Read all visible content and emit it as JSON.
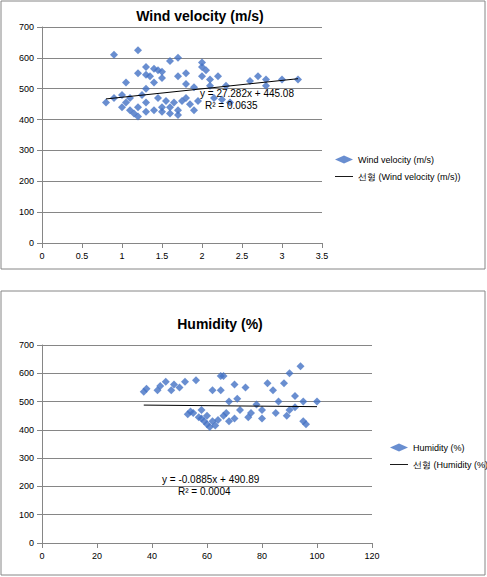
{
  "chart_data": [
    {
      "type": "scatter",
      "title": "Wind velocity (m/s)",
      "xlim": [
        0,
        3.5
      ],
      "xticks": [
        0,
        0.5,
        1,
        1.5,
        2,
        2.5,
        3,
        3.5
      ],
      "ylim": [
        0,
        700
      ],
      "yticks": [
        0,
        100,
        200,
        300,
        400,
        500,
        600,
        700
      ],
      "grid": true,
      "legend": "right",
      "annotations": [
        "y = 27.282x + 445.08",
        "R² = 0.0635"
      ],
      "series": [
        {
          "name": "Wind velocity (m/s)",
          "type": "scatter",
          "color": "#4472c4",
          "marker": "diamond",
          "x": [
            0.8,
            0.9,
            0.9,
            1.0,
            1.0,
            1.05,
            1.05,
            1.1,
            1.1,
            1.15,
            1.2,
            1.2,
            1.2,
            1.2,
            1.25,
            1.3,
            1.3,
            1.3,
            1.3,
            1.3,
            1.35,
            1.4,
            1.4,
            1.4,
            1.45,
            1.45,
            1.5,
            1.5,
            1.5,
            1.5,
            1.55,
            1.6,
            1.6,
            1.6,
            1.65,
            1.7,
            1.7,
            1.7,
            1.7,
            1.75,
            1.8,
            1.8,
            1.8,
            1.85,
            1.9,
            1.9,
            1.95,
            2.0,
            2.0,
            2.0,
            2.05,
            2.1,
            2.1,
            2.15,
            2.2,
            2.25,
            2.3,
            2.35,
            2.6,
            2.7,
            2.8,
            2.8,
            3.0,
            3.2
          ],
          "values": [
            455,
            470,
            610,
            480,
            440,
            520,
            455,
            430,
            470,
            420,
            625,
            550,
            440,
            410,
            480,
            570,
            545,
            500,
            455,
            425,
            540,
            565,
            520,
            430,
            560,
            470,
            555,
            535,
            440,
            425,
            460,
            590,
            440,
            420,
            455,
            600,
            540,
            430,
            415,
            460,
            550,
            515,
            470,
            450,
            430,
            505,
            460,
            585,
            570,
            540,
            560,
            530,
            510,
            470,
            540,
            465,
            510,
            455,
            525,
            540,
            510,
            530,
            530,
            530
          ]
        },
        {
          "name": "선형 (Wind velocity (m/s))",
          "type": "line",
          "color": "#000000",
          "line_style": "solid",
          "x": [
            0.8,
            3.2
          ],
          "values": [
            466.9,
            532.4
          ]
        }
      ]
    },
    {
      "type": "scatter",
      "title": "Humidity (%)",
      "xlim": [
        0,
        120
      ],
      "xticks": [
        0,
        20,
        40,
        60,
        80,
        100,
        120
      ],
      "ylim": [
        0,
        700
      ],
      "yticks": [
        0,
        100,
        200,
        300,
        400,
        500,
        600,
        700
      ],
      "grid": true,
      "legend": "right",
      "annotations": [
        "y = -0.0885x + 490.89",
        "R² = 0.0004"
      ],
      "series": [
        {
          "name": "Humidity (%)",
          "type": "scatter",
          "color": "#4472c4",
          "marker": "diamond",
          "x": [
            37,
            38,
            42,
            43,
            45,
            47,
            48,
            50,
            52,
            53,
            54,
            55,
            56,
            57,
            58,
            58,
            59,
            60,
            60,
            61,
            62,
            62,
            63,
            64,
            65,
            65,
            66,
            66,
            67,
            68,
            68,
            70,
            70,
            71,
            72,
            74,
            75,
            76,
            78,
            80,
            80,
            82,
            84,
            85,
            86,
            88,
            89,
            90,
            90,
            92,
            92,
            94,
            95,
            95,
            96,
            100
          ],
          "values": [
            535,
            545,
            540,
            555,
            570,
            540,
            560,
            550,
            570,
            455,
            465,
            460,
            575,
            445,
            440,
            470,
            430,
            420,
            450,
            410,
            430,
            540,
            415,
            435,
            590,
            540,
            450,
            590,
            460,
            430,
            500,
            560,
            440,
            510,
            470,
            550,
            445,
            460,
            490,
            440,
            470,
            565,
            540,
            460,
            500,
            565,
            450,
            600,
            470,
            520,
            480,
            625,
            500,
            430,
            420,
            500
          ]
        },
        {
          "name": "선형 (Humidity (%))",
          "type": "line",
          "color": "#000000",
          "line_style": "solid",
          "x": [
            37,
            100
          ],
          "values": [
            487.6,
            482.0
          ]
        }
      ]
    }
  ]
}
